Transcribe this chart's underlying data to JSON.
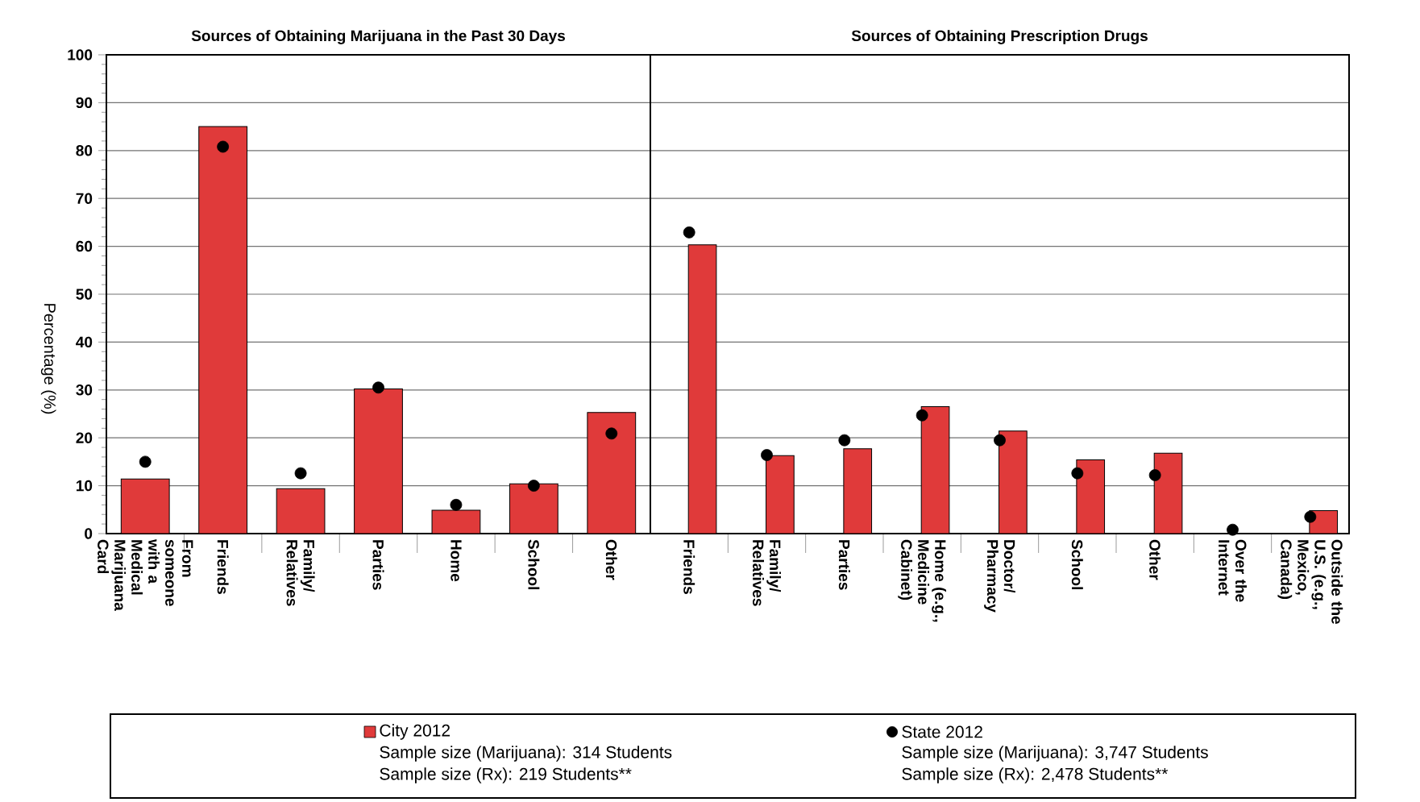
{
  "chart_data": [
    {
      "type": "bar",
      "title": "Sources of Obtaining Marijuana in the Past 30 Days",
      "ylabel": "Percentage (%)",
      "categories": [
        "From someone with a Medical Marijuana Card",
        "Friends",
        "Family/ Relatives",
        "Parties",
        "Home",
        "School",
        "Other"
      ],
      "series": [
        {
          "name": "City 2012",
          "color": "#e03a3a",
          "values": [
            11.4,
            85.0,
            9.4,
            30.2,
            4.9,
            10.4,
            25.3
          ]
        },
        {
          "name": "State 2012",
          "type": "scatter",
          "marker": "circle",
          "color": "#000000",
          "values": [
            15.0,
            80.8,
            12.6,
            30.5,
            6.0,
            10.0,
            20.9
          ]
        }
      ],
      "ylim": [
        0,
        100
      ],
      "yticks": [
        0,
        10,
        20,
        30,
        40,
        50,
        60,
        70,
        80,
        90,
        100
      ],
      "grid": "y",
      "legend": "bottom",
      "annotations": [
        "Sample size (Marijuana): 314 Students",
        "Sample size (Rx): 219 Students**",
        "Sample size (Marijuana): 3,747 Students",
        "Sample size (Rx): 2,478 Students**"
      ]
    },
    {
      "type": "bar",
      "title": "Sources of Obtaining Prescription Drugs",
      "categories": [
        "Friends",
        "Family/ Relatives",
        "Parties",
        "Home (e.g., Medicine Cabinet)",
        "Doctor/ Pharmacy",
        "School",
        "Other",
        "Over the Internet",
        "Outside the U.S. (e.g., Mexico, Canada)"
      ],
      "series": [
        {
          "color": "#e03a3a",
          "values": [
            60.3,
            16.3,
            17.7,
            26.5,
            21.4,
            15.4,
            16.8,
            null,
            4.8
          ]
        },
        {
          "type": "scatter",
          "marker": "circle",
          "color": "#000000",
          "values": [
            62.9,
            16.4,
            19.5,
            24.7,
            19.5,
            12.6,
            12.2,
            0.8,
            3.5
          ]
        }
      ],
      "ylim": [
        0,
        100
      ],
      "yticks": [
        0,
        10,
        20,
        30,
        40,
        50,
        60,
        70,
        80,
        90,
        100
      ],
      "grid": "y",
      "tick_labels": "x"
    }
  ]
}
